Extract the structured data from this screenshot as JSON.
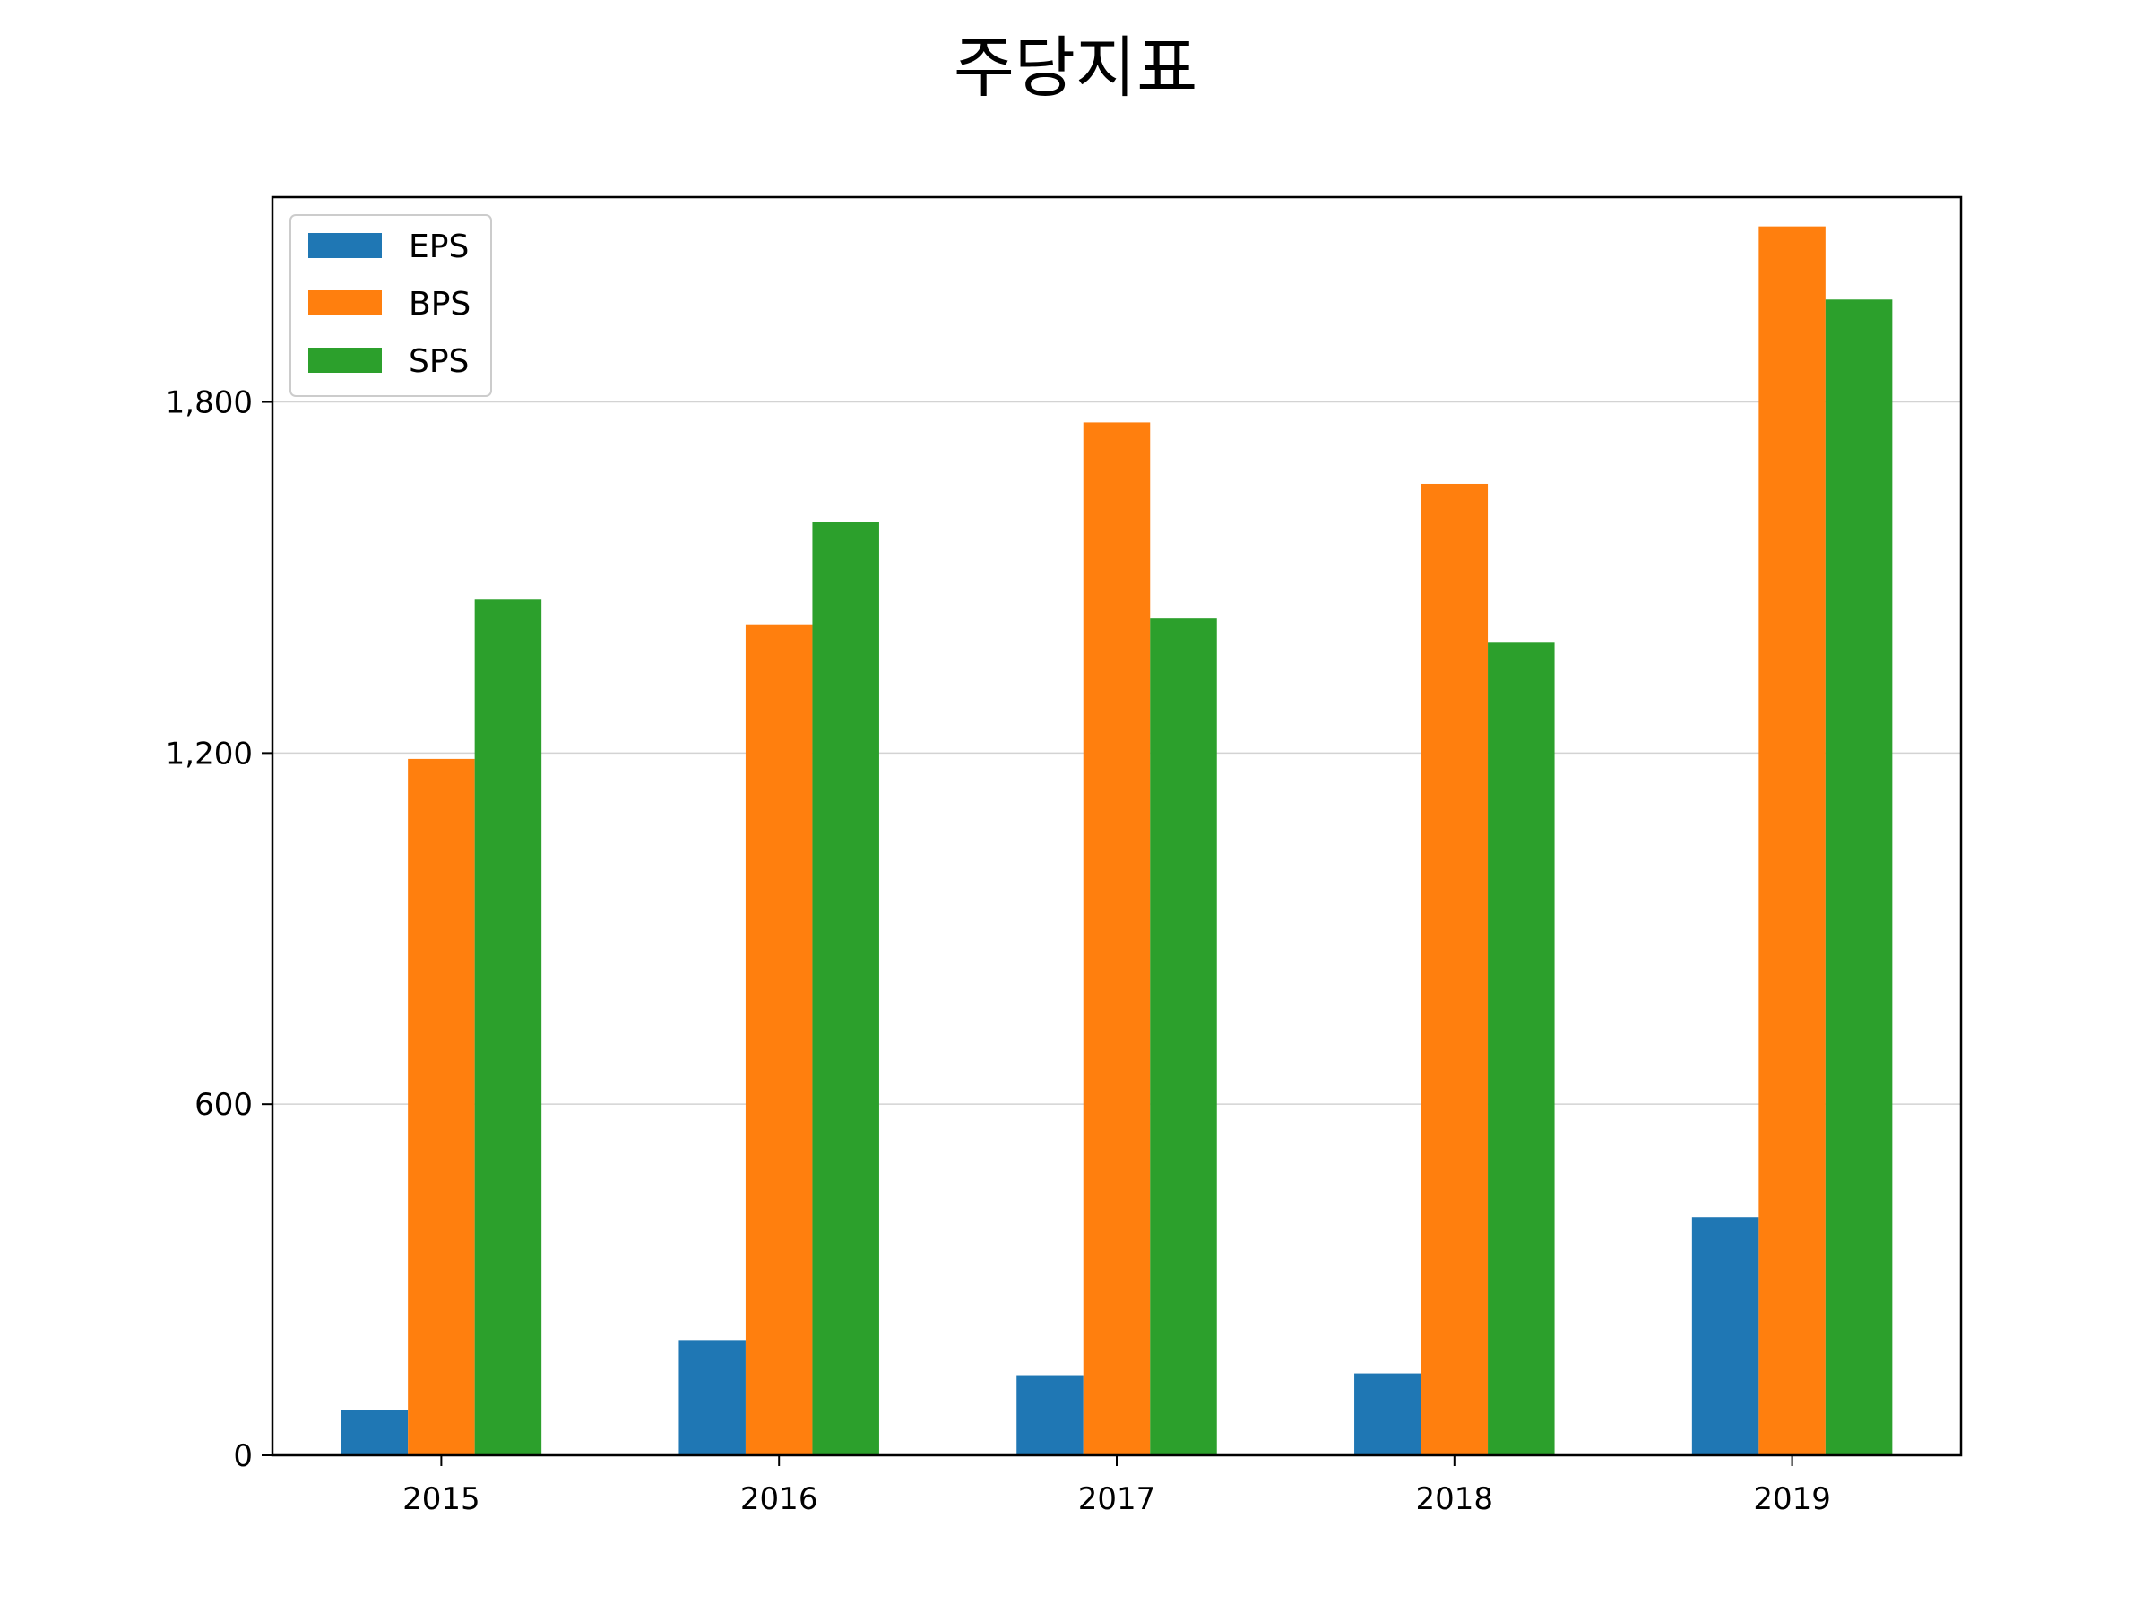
{
  "chart_data": {
    "type": "bar",
    "title": "주당지표",
    "xlabel": "",
    "ylabel": "",
    "categories": [
      "2015",
      "2016",
      "2017",
      "2018",
      "2019"
    ],
    "series": [
      {
        "name": "EPS",
        "color": "#1f77b4",
        "values": [
          78,
          197,
          137,
          140,
          407
        ]
      },
      {
        "name": "BPS",
        "color": "#ff7f0e",
        "values": [
          1190,
          1420,
          1765,
          1660,
          2100
        ]
      },
      {
        "name": "SPS",
        "color": "#2ca02c",
        "values": [
          1462,
          1595,
          1430,
          1390,
          1975
        ]
      }
    ],
    "ylim": [
      0,
      2150
    ],
    "yticks": [
      0,
      600,
      1200,
      1800
    ],
    "ytick_labels": [
      "0",
      "600",
      "1,200",
      "1,800"
    ],
    "grid": "y",
    "legend_position": "upper-left"
  }
}
